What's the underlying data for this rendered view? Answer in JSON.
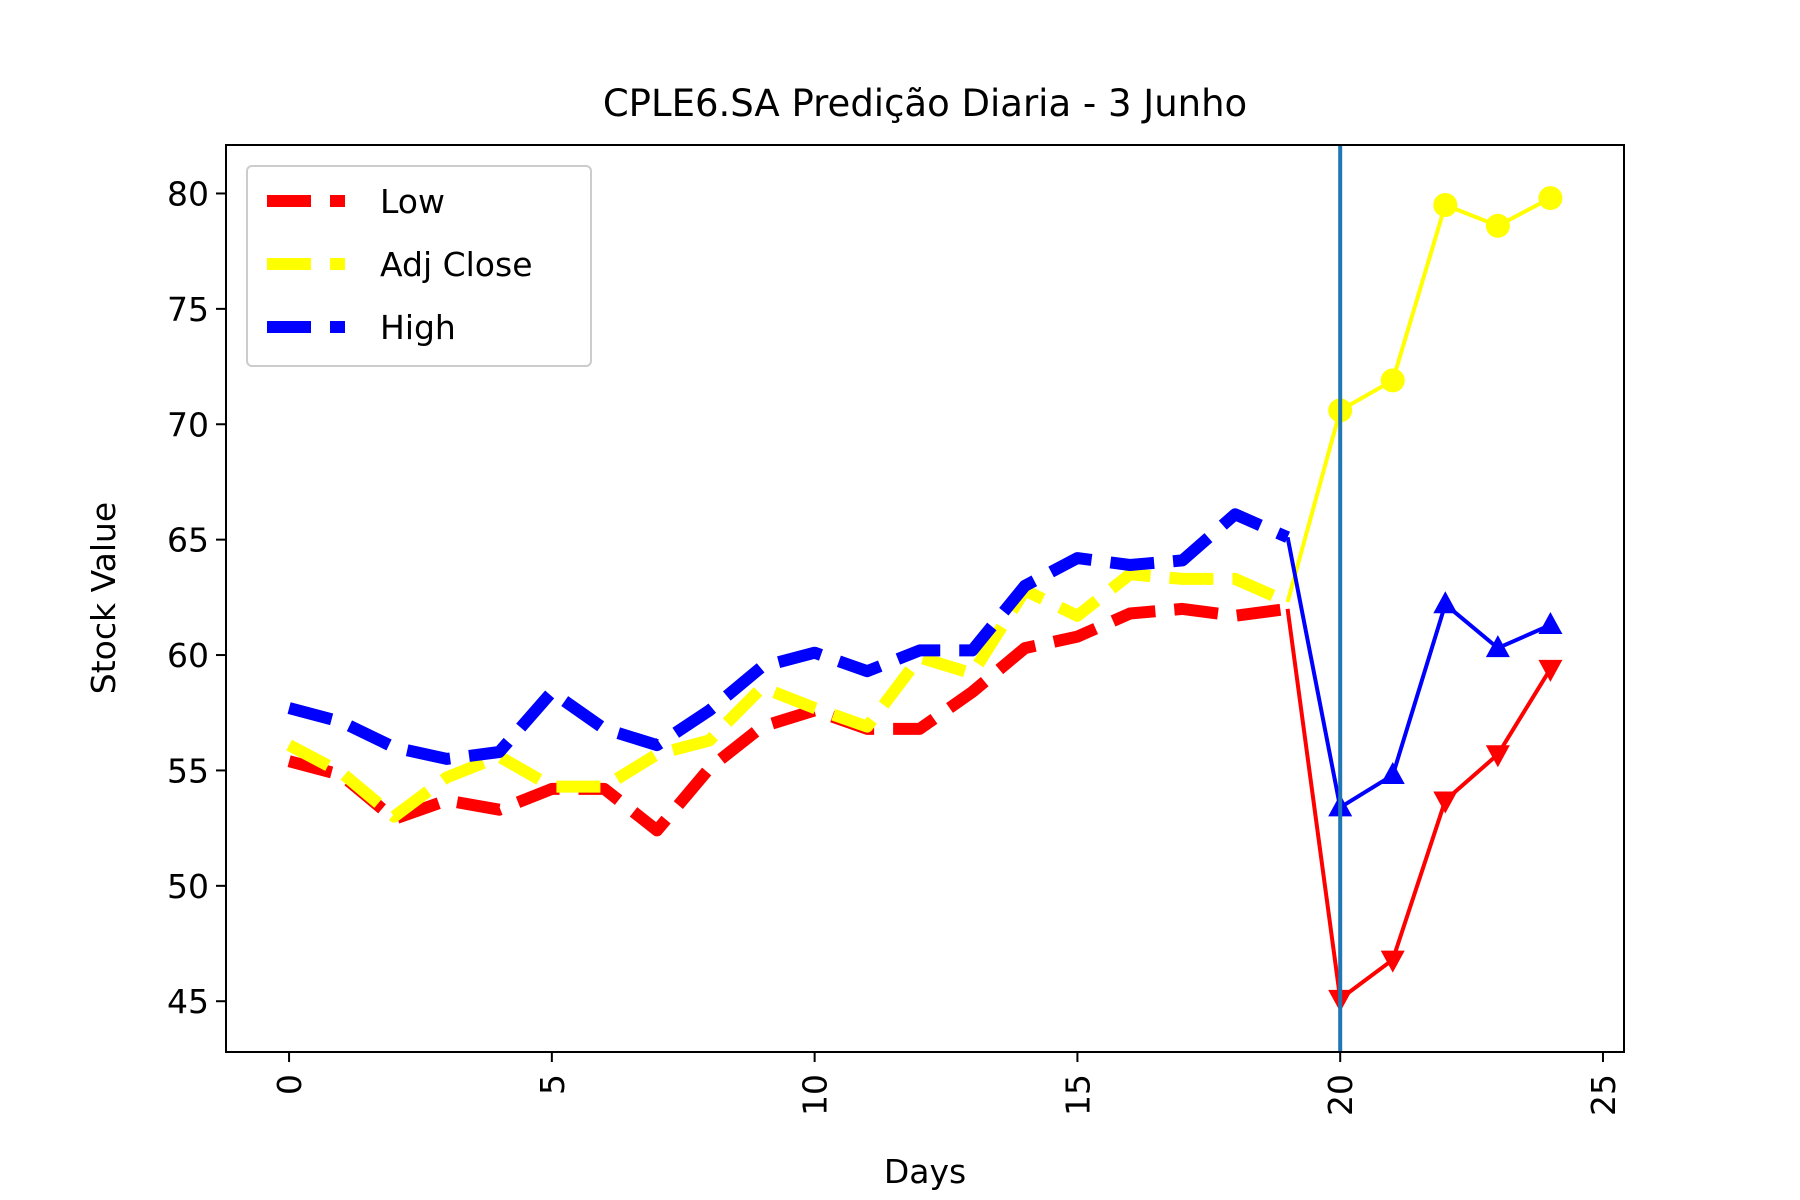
{
  "chart_data": {
    "type": "line",
    "title": "CPLE6.SA Predição Diaria - 3 Junho",
    "xlabel": "Days",
    "ylabel": "Stock Value",
    "xlim": [
      -1.2,
      25.4
    ],
    "ylim": [
      42.8,
      82.1
    ],
    "xticks": [
      0,
      5,
      10,
      15,
      20,
      25
    ],
    "yticks": [
      45,
      50,
      55,
      60,
      65,
      70,
      75,
      80
    ],
    "xtick_labels": [
      "0",
      "5",
      "10",
      "15",
      "20",
      "25"
    ],
    "ytick_labels": [
      "45",
      "50",
      "55",
      "60",
      "65",
      "70",
      "75",
      "80"
    ],
    "grid": false,
    "legend_position": "top-left",
    "vline": {
      "x": 20,
      "color": "#1f77b4"
    },
    "legend": [
      {
        "label": "Low",
        "color": "#ff0000"
      },
      {
        "label": "Adj Close",
        "color": "#ffff00"
      },
      {
        "label": "High",
        "color": "#0000ff"
      }
    ],
    "series": [
      {
        "name": "Low",
        "color": "#ff0000",
        "style": "dashed",
        "x": [
          0,
          1,
          2,
          3,
          4,
          5,
          6,
          7,
          8,
          9,
          10,
          11,
          12,
          13,
          14,
          15,
          16,
          17,
          18,
          19
        ],
        "values": [
          55.4,
          54.8,
          52.9,
          53.7,
          53.3,
          54.2,
          54.2,
          52.4,
          55.1,
          56.9,
          57.6,
          56.8,
          56.8,
          58.4,
          60.3,
          60.8,
          61.8,
          62.0,
          61.7,
          62.0
        ]
      },
      {
        "name": "Adj Close",
        "color": "#ffff00",
        "style": "dashed",
        "x": [
          0,
          1,
          2,
          3,
          4,
          5,
          6,
          7,
          8,
          9,
          10,
          11,
          12,
          13,
          14,
          15,
          16,
          17,
          18,
          19
        ],
        "values": [
          56.1,
          54.9,
          53.0,
          54.7,
          55.6,
          54.3,
          54.3,
          55.7,
          56.3,
          58.6,
          57.7,
          56.9,
          59.9,
          59.2,
          62.8,
          61.7,
          63.5,
          63.3,
          63.3,
          62.3
        ]
      },
      {
        "name": "High",
        "color": "#0000ff",
        "style": "dashed",
        "x": [
          0,
          1,
          2,
          3,
          4,
          5,
          6,
          7,
          8,
          9,
          10,
          11,
          12,
          13,
          14,
          15,
          16,
          17,
          18,
          19
        ],
        "values": [
          57.7,
          57.1,
          56.0,
          55.5,
          55.8,
          58.4,
          56.8,
          56.1,
          57.6,
          59.5,
          60.1,
          59.3,
          60.2,
          60.2,
          63.0,
          64.2,
          63.9,
          64.1,
          66.1,
          65.1
        ]
      },
      {
        "name": "Low",
        "color": "#ff0000",
        "style": "solid",
        "marker": "triangle-down",
        "x": [
          19,
          20,
          21,
          22,
          23,
          24
        ],
        "values": [
          62.0,
          45.1,
          46.8,
          53.7,
          55.7,
          59.4
        ]
      },
      {
        "name": "Adj Close",
        "color": "#ffff00",
        "style": "solid",
        "marker": "circle",
        "x": [
          19,
          20,
          21,
          22,
          23,
          24
        ],
        "values": [
          62.3,
          70.6,
          71.9,
          79.5,
          78.6,
          79.8
        ]
      },
      {
        "name": "High",
        "color": "#0000ff",
        "style": "solid",
        "marker": "triangle-up",
        "x": [
          19,
          20,
          21,
          22,
          23,
          24
        ],
        "values": [
          65.1,
          53.4,
          54.8,
          62.2,
          60.3,
          61.3
        ]
      }
    ]
  }
}
